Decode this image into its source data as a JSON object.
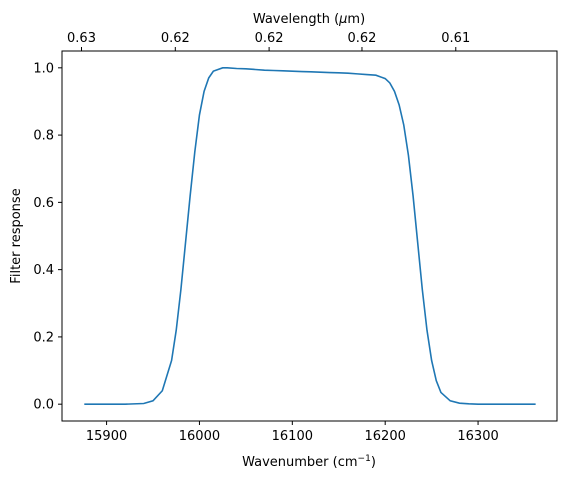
{
  "chart_data": {
    "type": "line",
    "title": "",
    "xlabel": "Wavenumber (cm",
    "xlabel_sup": "−1",
    "xlabel_suffix": ")",
    "ylabel": "Filter response",
    "top_xlabel": "Wavelength (",
    "top_xlabel_mu": "μ",
    "top_xlabel_suffix": "m)",
    "xlim": [
      15852,
      16385
    ],
    "ylim": [
      -0.05,
      1.05
    ],
    "x_ticks": [
      15900,
      16000,
      16100,
      16200,
      16300
    ],
    "y_ticks": [
      0.0,
      0.2,
      0.4,
      0.6,
      0.8,
      1.0
    ],
    "y_tick_labels": [
      "0.0",
      "0.2",
      "0.4",
      "0.6",
      "0.8",
      "1.0"
    ],
    "top_ticks": [
      {
        "wavenumber": 15873,
        "label": "0.63"
      },
      {
        "wavenumber": 15974,
        "label": "0.62"
      },
      {
        "wavenumber": 16075,
        "label": "0.62"
      },
      {
        "wavenumber": 16175,
        "label": "0.62"
      },
      {
        "wavenumber": 16276,
        "label": "0.61"
      }
    ],
    "grid": false,
    "series": [
      {
        "color": "#1f77b4",
        "x": [
          15876,
          15900,
          15920,
          15940,
          15950,
          15960,
          15970,
          15975,
          15980,
          15985,
          15990,
          15995,
          16000,
          16005,
          16010,
          16015,
          16020,
          16025,
          16030,
          16040,
          16050,
          16060,
          16070,
          16080,
          16090,
          16100,
          16110,
          16120,
          16130,
          16140,
          16150,
          16160,
          16170,
          16180,
          16190,
          16200,
          16205,
          16210,
          16215,
          16220,
          16225,
          16230,
          16235,
          16240,
          16245,
          16250,
          16255,
          16260,
          16270,
          16280,
          16290,
          16300,
          16320,
          16340,
          16362
        ],
        "y": [
          0.0,
          0.0,
          0.0,
          0.002,
          0.01,
          0.04,
          0.13,
          0.22,
          0.34,
          0.48,
          0.62,
          0.75,
          0.86,
          0.93,
          0.97,
          0.99,
          0.995,
          1.0,
          1.0,
          0.998,
          0.997,
          0.995,
          0.993,
          0.992,
          0.991,
          0.99,
          0.989,
          0.988,
          0.987,
          0.986,
          0.985,
          0.984,
          0.982,
          0.98,
          0.978,
          0.968,
          0.955,
          0.93,
          0.89,
          0.83,
          0.74,
          0.62,
          0.48,
          0.34,
          0.22,
          0.13,
          0.07,
          0.035,
          0.01,
          0.003,
          0.001,
          0.0,
          0.0,
          0.0,
          0.0
        ]
      }
    ]
  }
}
